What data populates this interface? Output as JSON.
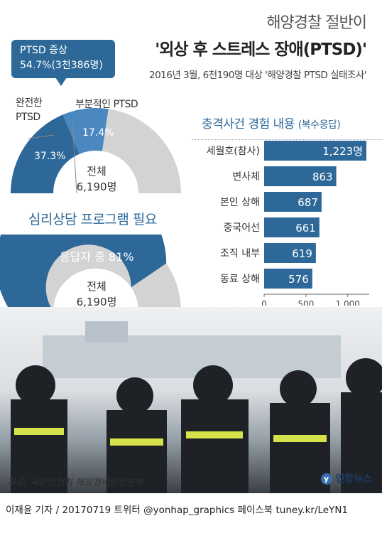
{
  "title1": "해양경찰 절반이",
  "title2": "'외상 후 스트레스 장애(PTSD)'",
  "subtitle": "2016년 3월, 6천190명 대상 '해양경찰 PTSD 실태조사'",
  "callout": {
    "line1": "PTSD 증상",
    "line2": "54.7%(3천386명)"
  },
  "gauge1": {
    "label_full": "완전한\nPTSD",
    "label_partial": "부분적인 PTSD",
    "full_pct": "37.3%",
    "partial_pct": "17.4%",
    "full_value": 37.3,
    "partial_value": 17.4,
    "center_line1": "전체",
    "center_line2": "6,190명",
    "colors": {
      "full": "#2d6898",
      "partial": "#4a88bf",
      "rest": "#d3d3d3"
    }
  },
  "gauge2": {
    "title": "심리상담 프로그램 필요",
    "inner_label": "응답자 중 81%",
    "value": 81,
    "center_line1": "전체",
    "center_line2": "6,190명",
    "colors": {
      "filled": "#2d6898",
      "rest": "#d3d3d3"
    }
  },
  "bar_title_main": "충격사건 경험 내용",
  "bar_title_sub": "(복수응답)",
  "chart_data": {
    "type": "bar",
    "orientation": "horizontal",
    "categories": [
      "세월호(참사)",
      "변사체",
      "본인 상해",
      "중국어선",
      "조직 내부",
      "동료 상해"
    ],
    "values": [
      1223,
      863,
      687,
      661,
      619,
      576
    ],
    "value_labels": [
      "1,223명",
      "863",
      "687",
      "661",
      "619",
      "576"
    ],
    "xlim": [
      0,
      1223
    ],
    "xticks": [
      "0",
      "500",
      "1,000"
    ],
    "xtick_values": [
      0,
      500,
      1000
    ],
    "bar_color": "#2d6898"
  },
  "source": "자료/ 국민안전처 해양경비안전본부",
  "logo": "연합뉴스",
  "credit": "이재윤 기자 / 20170719   트위터 @yonhap_graphics  페이스북 tuney.kr/LeYN1"
}
